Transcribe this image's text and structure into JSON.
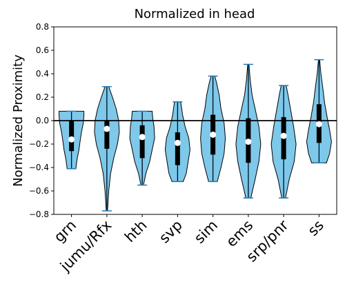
{
  "chart_data": {
    "type": "violin",
    "title": "Normalized in head",
    "ylabel": "Normalized Proximity",
    "xlabel": "",
    "ylim": [
      -0.8,
      0.8
    ],
    "yticks": [
      -0.8,
      -0.6,
      -0.4,
      -0.2,
      0.0,
      0.2,
      0.4,
      0.6,
      0.8
    ],
    "ytick_labels": [
      "−0.8",
      "−0.6",
      "−0.4",
      "−0.2",
      "0.0",
      "0.2",
      "0.4",
      "0.6",
      "0.8"
    ],
    "reference_line": 0.0,
    "colors": {
      "fill": "#7ec8ea",
      "edge": "#000000",
      "whisker": "#1f77b4",
      "box": "#000000",
      "median": "#ffffff"
    },
    "categories": [
      "grn",
      "jumu/Rfx",
      "hth",
      "svp",
      "sim",
      "ems",
      "srp/pnr",
      "ss"
    ],
    "violins": [
      {
        "min": -0.41,
        "max": 0.08,
        "q1": -0.26,
        "q3": 0.0,
        "median": -0.16,
        "density": [
          [
            -0.41,
            0.35
          ],
          [
            -0.33,
            0.45
          ],
          [
            -0.25,
            0.6
          ],
          [
            -0.17,
            0.7
          ],
          [
            -0.1,
            0.8
          ],
          [
            -0.02,
            0.95
          ],
          [
            0.04,
            1.0
          ],
          [
            0.08,
            1.0
          ]
        ]
      },
      {
        "min": -0.77,
        "max": 0.29,
        "q1": -0.24,
        "q3": 0.0,
        "median": -0.07,
        "density": [
          [
            -0.77,
            0.05
          ],
          [
            -0.6,
            0.15
          ],
          [
            -0.45,
            0.3
          ],
          [
            -0.32,
            0.55
          ],
          [
            -0.2,
            0.85
          ],
          [
            -0.1,
            1.0
          ],
          [
            0.0,
            0.95
          ],
          [
            0.1,
            0.75
          ],
          [
            0.2,
            0.45
          ],
          [
            0.29,
            0.15
          ]
        ]
      },
      {
        "min": -0.55,
        "max": 0.08,
        "q1": -0.32,
        "q3": -0.04,
        "median": -0.14,
        "density": [
          [
            -0.55,
            0.1
          ],
          [
            -0.45,
            0.3
          ],
          [
            -0.35,
            0.6
          ],
          [
            -0.25,
            0.8
          ],
          [
            -0.15,
            1.0
          ],
          [
            -0.05,
            0.95
          ],
          [
            0.02,
            0.85
          ],
          [
            0.08,
            0.8
          ]
        ]
      },
      {
        "min": -0.52,
        "max": 0.16,
        "q1": -0.38,
        "q3": -0.1,
        "median": -0.19,
        "density": [
          [
            -0.52,
            0.45
          ],
          [
            -0.45,
            0.7
          ],
          [
            -0.35,
            0.85
          ],
          [
            -0.25,
            1.0
          ],
          [
            -0.15,
            0.9
          ],
          [
            -0.05,
            0.6
          ],
          [
            0.05,
            0.4
          ],
          [
            0.16,
            0.25
          ]
        ]
      },
      {
        "min": -0.52,
        "max": 0.38,
        "q1": -0.29,
        "q3": 0.05,
        "median": -0.12,
        "density": [
          [
            -0.52,
            0.35
          ],
          [
            -0.4,
            0.65
          ],
          [
            -0.28,
            0.9
          ],
          [
            -0.15,
            1.0
          ],
          [
            -0.02,
            0.9
          ],
          [
            0.1,
            0.65
          ],
          [
            0.22,
            0.5
          ],
          [
            0.32,
            0.3
          ],
          [
            0.38,
            0.15
          ]
        ]
      },
      {
        "min": -0.66,
        "max": 0.48,
        "q1": -0.36,
        "q3": 0.02,
        "median": -0.18,
        "density": [
          [
            -0.66,
            0.2
          ],
          [
            -0.5,
            0.55
          ],
          [
            -0.35,
            0.85
          ],
          [
            -0.2,
            1.0
          ],
          [
            -0.05,
            0.85
          ],
          [
            0.1,
            0.55
          ],
          [
            0.22,
            0.3
          ],
          [
            0.35,
            0.15
          ],
          [
            0.48,
            0.05
          ]
        ]
      },
      {
        "min": -0.66,
        "max": 0.3,
        "q1": -0.33,
        "q3": 0.03,
        "median": -0.13,
        "density": [
          [
            -0.66,
            0.15
          ],
          [
            -0.5,
            0.45
          ],
          [
            -0.35,
            0.85
          ],
          [
            -0.2,
            1.0
          ],
          [
            -0.05,
            0.8
          ],
          [
            0.1,
            0.55
          ],
          [
            0.22,
            0.35
          ],
          [
            0.3,
            0.2
          ]
        ]
      },
      {
        "min": -0.36,
        "max": 0.52,
        "q1": -0.19,
        "q3": 0.14,
        "median": -0.03,
        "density": [
          [
            -0.36,
            0.6
          ],
          [
            -0.28,
            0.85
          ],
          [
            -0.18,
            1.0
          ],
          [
            -0.08,
            0.85
          ],
          [
            0.03,
            0.65
          ],
          [
            0.15,
            0.45
          ],
          [
            0.28,
            0.3
          ],
          [
            0.4,
            0.15
          ],
          [
            0.52,
            0.05
          ]
        ]
      }
    ]
  }
}
